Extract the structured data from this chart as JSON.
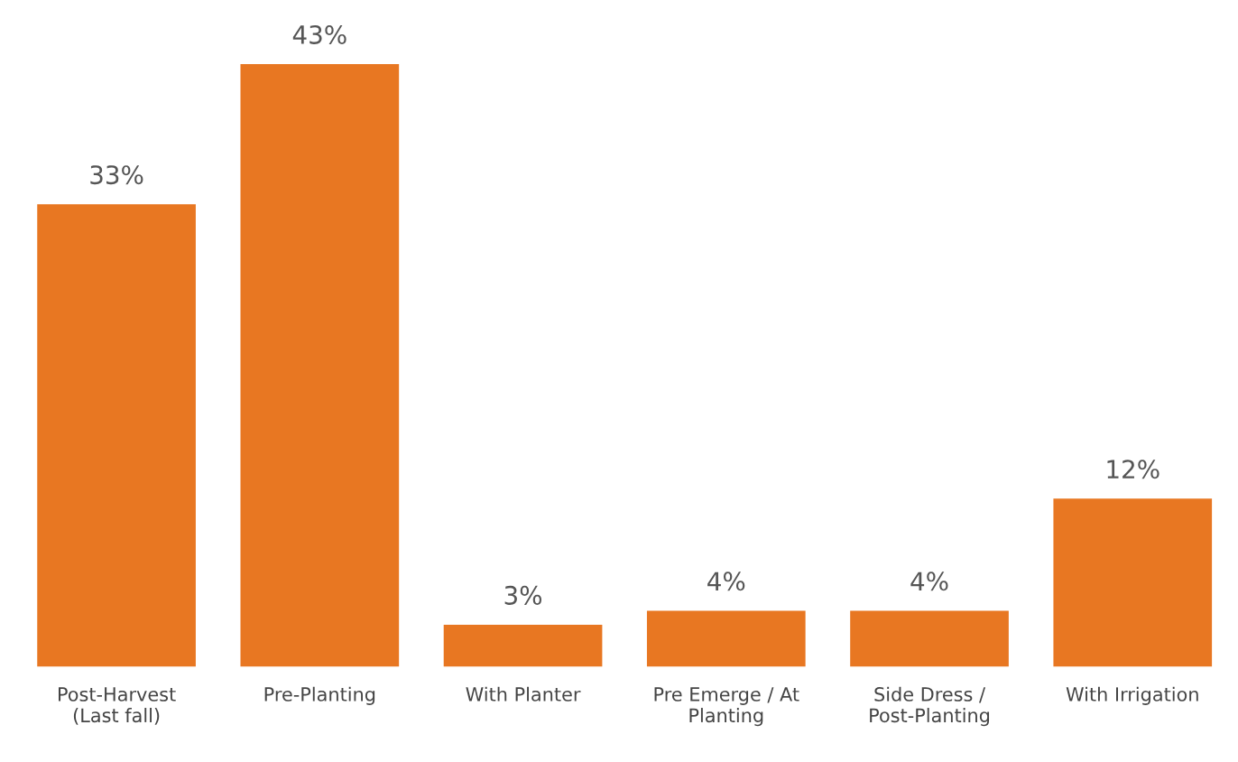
{
  "chart_data": {
    "type": "bar",
    "categories": [
      "Post-Harvest\n(Last fall)",
      "Pre-Planting",
      "With Planter",
      "Pre Emerge / At\nPlanting",
      "Side Dress /\nPost-Planting",
      "With Irrigation"
    ],
    "values": [
      33,
      43,
      3,
      4,
      4,
      12
    ],
    "color": "#e87722",
    "value_labels": [
      "33%",
      "43%",
      "3%",
      "4%",
      "4%",
      "12%"
    ],
    "grid": false
  }
}
